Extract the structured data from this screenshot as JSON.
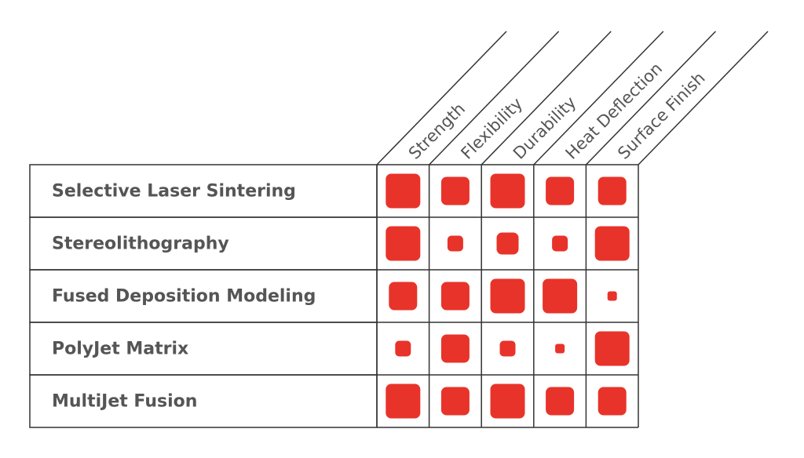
{
  "chart_data": {
    "type": "matrix",
    "categories": [
      "Selective Laser Sintering",
      "Stereolithography",
      "Fused Deposition Modeling",
      "PolyJet Matrix",
      "MultiJet Fusion"
    ],
    "series": [
      {
        "name": "Strength",
        "color": "#e8332a",
        "values": [
          5,
          5,
          4,
          2,
          5
        ]
      },
      {
        "name": "Flexibility",
        "color": "#e8332a",
        "values": [
          4,
          2,
          4,
          4,
          4
        ]
      },
      {
        "name": "Durability",
        "color": "#e8332a",
        "values": [
          5,
          3,
          5,
          2,
          5
        ]
      },
      {
        "name": "Heat Deflection",
        "color": "#e8332a",
        "values": [
          4,
          2,
          5,
          1,
          4
        ]
      },
      {
        "name": "Surface Finish",
        "color": "#e8332a",
        "values": [
          4,
          5,
          1,
          5,
          4
        ]
      }
    ]
  }
}
